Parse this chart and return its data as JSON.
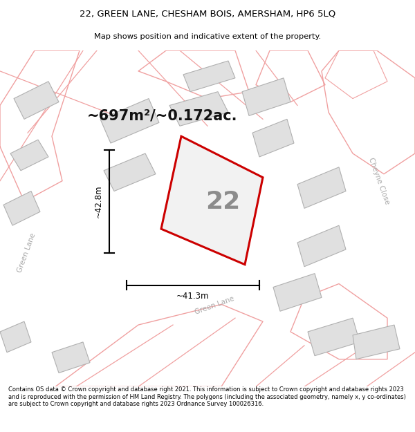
{
  "title_line1": "22, GREEN LANE, CHESHAM BOIS, AMERSHAM, HP6 5LQ",
  "title_line2": "Map shows position and indicative extent of the property.",
  "area_text": "~697m²/~0.172ac.",
  "plot_number": "22",
  "dim_width": "~41.3m",
  "dim_height": "~42.8m",
  "road_label_left": "Green Lane",
  "road_label_right": "Cheyne Close",
  "road_label_bottom": "Green Lane",
  "footer_text": "Contains OS data © Crown copyright and database right 2021. This information is subject to Crown copyright and database rights 2023 and is reproduced with the permission of HM Land Registry. The polygons (including the associated geometry, namely x, y co-ordinates) are subject to Crown copyright and database rights 2023 Ordnance Survey 100026316.",
  "map_bg": "#f7f6f6",
  "plot_fill": "#f0f0f0",
  "plot_edge": "#cc0000",
  "building_fill": "#e0e0e0",
  "building_edge": "#b0b0b0",
  "road_outline": "#f0a0a0",
  "road_fill": "#ffffff"
}
